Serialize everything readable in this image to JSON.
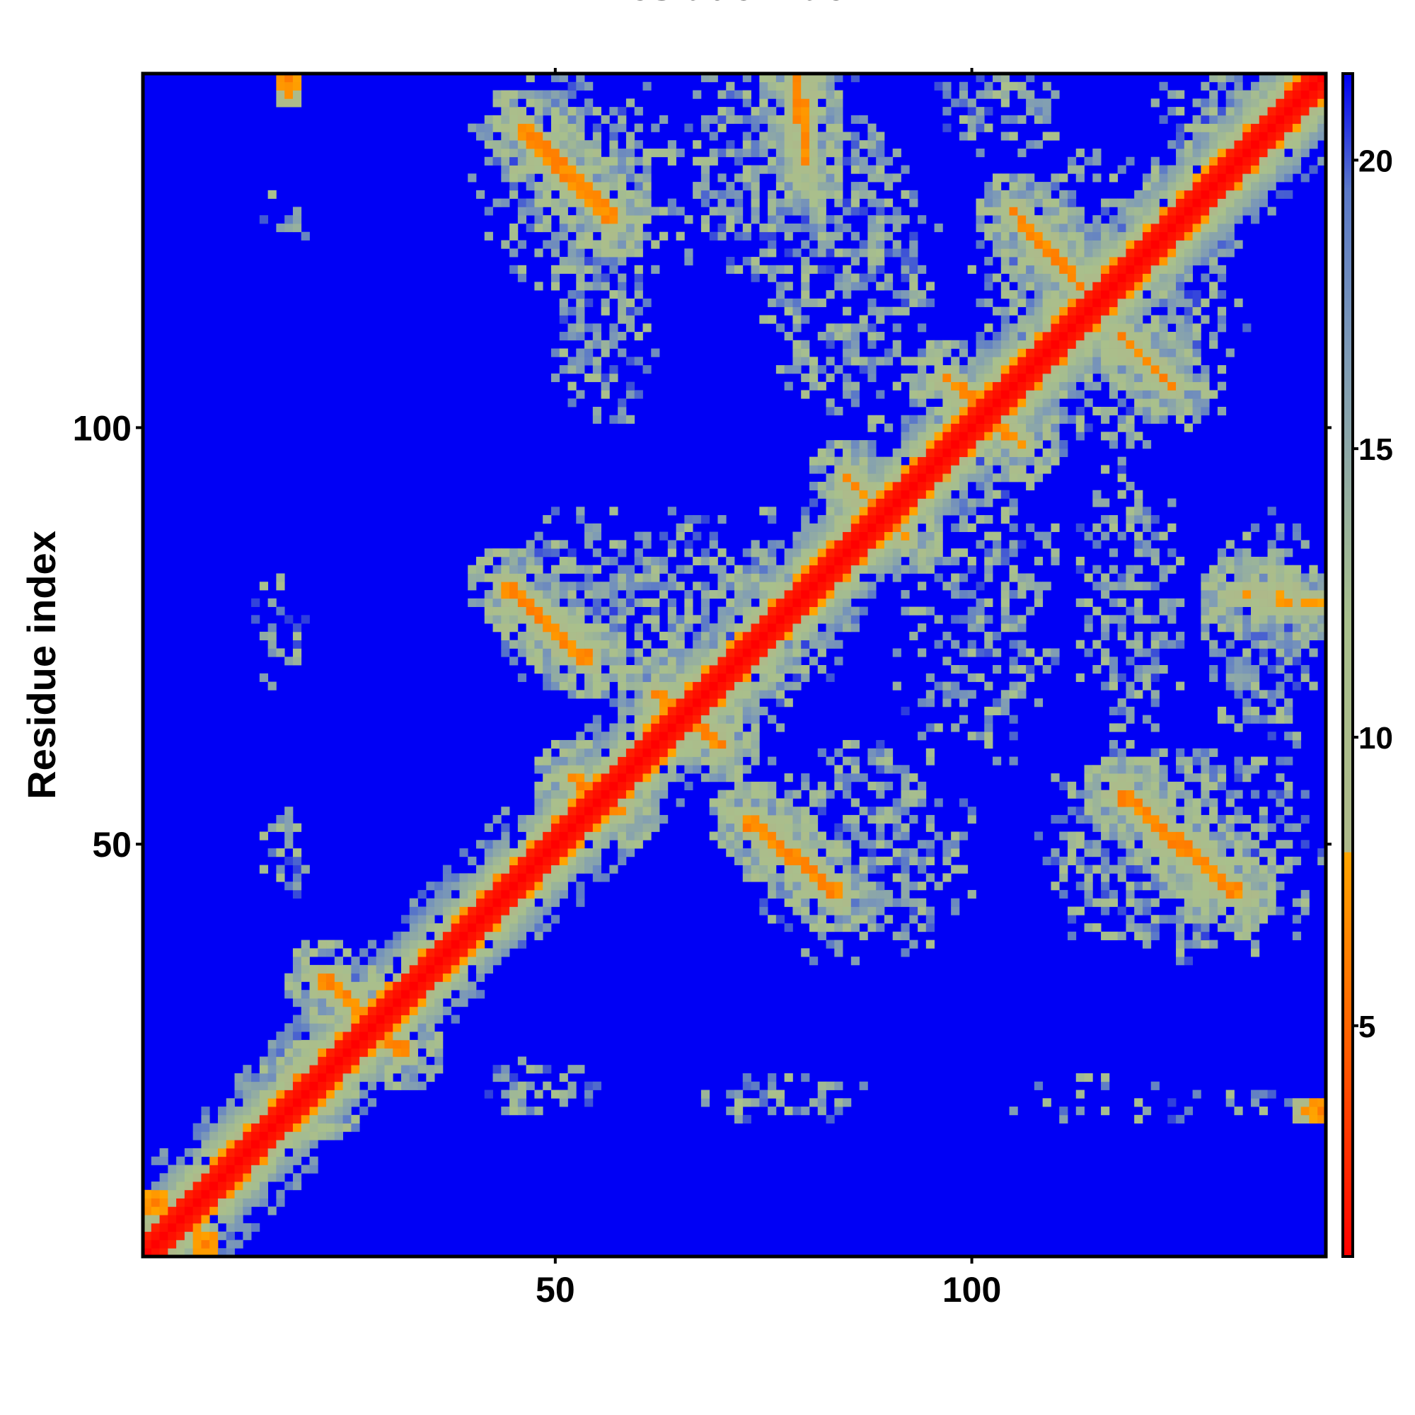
{
  "chart_data": {
    "type": "heatmap",
    "title": "",
    "xlabel": "Residue index",
    "ylabel": "Residue index",
    "xlim": [
      1,
      142
    ],
    "ylim": [
      1,
      142
    ],
    "n_residues": 142,
    "x_ticks": [
      50,
      100
    ],
    "y_ticks": [
      50,
      100
    ],
    "colorbar": {
      "min": 1,
      "max": 21.5,
      "ticks": [
        5,
        10,
        15,
        20
      ],
      "stops": [
        {
          "value": 1,
          "color": "#ff0000"
        },
        {
          "value": 4.5,
          "color": "#ff5a00"
        },
        {
          "value": 8,
          "color": "#ffa500"
        },
        {
          "value": 8.01,
          "color": "#aeb98a"
        },
        {
          "value": 12,
          "color": "#a9c08c"
        },
        {
          "value": 16.5,
          "color": "#7f9cb5"
        },
        {
          "value": 19.5,
          "color": "#5a78c8"
        },
        {
          "value": 21.5,
          "color": "#0000f5"
        }
      ]
    },
    "background_value": 21.5,
    "diagonal": {
      "core_value": 1,
      "halo_width": 4
    },
    "contact_bands": [
      {
        "from": [
          46,
          136
        ],
        "to": [
          57,
          125
        ],
        "width": 1.6,
        "value": 6
      },
      {
        "from": [
          44,
          81
        ],
        "to": [
          54,
          72
        ],
        "width": 1.4,
        "value": 6
      },
      {
        "from": [
          73,
          53
        ],
        "to": [
          84,
          44
        ],
        "width": 1.5,
        "value": 6
      },
      {
        "from": [
          105,
          126
        ],
        "to": [
          113,
          117
        ],
        "width": 1.2,
        "value": 6
      },
      {
        "from": [
          118,
          111
        ],
        "to": [
          124,
          105
        ],
        "width": 1.2,
        "value": 6
      },
      {
        "from": [
          118,
          56
        ],
        "to": [
          132,
          44
        ],
        "width": 1.5,
        "value": 6
      },
      {
        "from": [
          79,
          144
        ],
        "to": [
          80,
          132
        ],
        "width": 1.2,
        "value": 6
      },
      {
        "from": [
          132,
          80
        ],
        "to": [
          142,
          79
        ],
        "width": 1.0,
        "value": 7
      },
      {
        "from": [
          97,
          106
        ],
        "to": [
          106,
          98
        ],
        "width": 1.1,
        "value": 6
      },
      {
        "from": [
          85,
          94
        ],
        "to": [
          92,
          87
        ],
        "width": 1.1,
        "value": 6
      },
      {
        "from": [
          62,
          68
        ],
        "to": [
          70,
          62
        ],
        "width": 1.4,
        "value": 6
      },
      {
        "from": [
          52,
          58
        ],
        "to": [
          58,
          54
        ],
        "width": 1.2,
        "value": 6
      },
      {
        "from": [
          22,
          34
        ],
        "to": [
          32,
          25
        ],
        "width": 1.4,
        "value": 6
      },
      {
        "from": [
          19,
          22
        ],
        "to": [
          22,
          19
        ],
        "width": 1.0,
        "value": 6
      }
    ],
    "spots": [
      {
        "x": 18,
        "y": 142,
        "value": 6
      },
      {
        "x": 18,
        "y": 139.5,
        "value": 7
      },
      {
        "x": 142,
        "y": 18,
        "value": 6
      },
      {
        "x": 140,
        "y": 18,
        "value": 7
      },
      {
        "x": 1.5,
        "y": 7,
        "value": 6
      },
      {
        "x": 8,
        "y": 1.5,
        "value": 6
      }
    ],
    "neighborhood_regions": [
      {
        "x": [
          40,
          64
        ],
        "y": [
          117,
          144
        ],
        "fill": 0.58
      },
      {
        "x": [
          63,
          90
        ],
        "y": [
          117,
          144
        ],
        "fill": 0.5
      },
      {
        "x": [
          50,
          62
        ],
        "y": [
          100,
          132
        ],
        "fill": 0.52
      },
      {
        "x": [
          42,
          62
        ],
        "y": [
          68,
          90
        ],
        "fill": 0.58
      },
      {
        "x": [
          73,
          100
        ],
        "y": [
          36,
          62
        ],
        "fill": 0.58
      },
      {
        "x": [
          100,
          133
        ],
        "y": [
          96,
          133
        ],
        "fill": 0.58
      },
      {
        "x": [
          108,
          142
        ],
        "y": [
          36,
          62
        ],
        "fill": 0.58
      },
      {
        "x": [
          128,
          142
        ],
        "y": [
          62,
          90
        ],
        "fill": 0.58
      },
      {
        "x": [
          91,
          110
        ],
        "y": [
          60,
          100
        ],
        "fill": 0.45
      },
      {
        "x": [
          55,
          85
        ],
        "y": [
          62,
          90
        ],
        "fill": 0.55
      },
      {
        "x": [
          75,
          96
        ],
        "y": [
          100,
          135
        ],
        "fill": 0.5
      },
      {
        "x": [
          96,
          111
        ],
        "y": [
          133,
          144
        ],
        "fill": 0.45
      },
      {
        "x": [
          121,
          142
        ],
        "y": [
          133,
          144
        ],
        "fill": 0.45
      },
      {
        "x": [
          113,
          125
        ],
        "y": [
          60,
          96
        ],
        "fill": 0.5
      },
      {
        "x": [
          15,
          20
        ],
        "y": [
          44,
          54
        ],
        "fill": 0.45
      },
      {
        "x": [
          14,
          20
        ],
        "y": [
          69,
          82
        ],
        "fill": 0.4
      },
      {
        "x": [
          15,
          20
        ],
        "y": [
          122,
          130
        ],
        "fill": 0.25
      },
      {
        "x": [
          41,
          55
        ],
        "y": [
          17,
          24
        ],
        "fill": 0.5
      },
      {
        "x": [
          67,
          87
        ],
        "y": [
          17,
          22
        ],
        "fill": 0.5
      },
      {
        "x": [
          100,
          140
        ],
        "y": [
          17,
          22
        ],
        "fill": 0.2
      }
    ]
  }
}
